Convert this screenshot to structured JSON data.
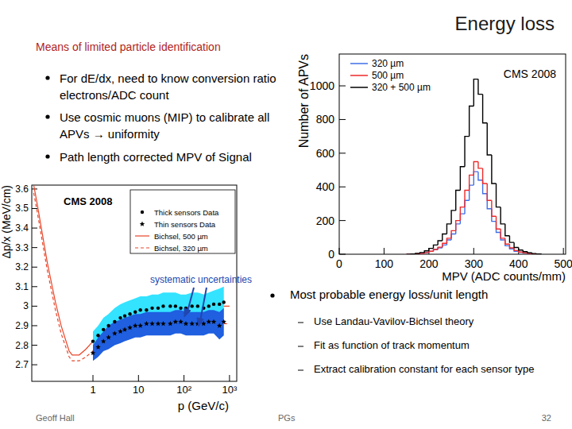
{
  "slide": {
    "title": "Energy loss",
    "heading": "Means of limited particle identification",
    "bullets": [
      "For dE/dx, need to know conversion ratio electrons/ADC count",
      "Use cosmic muons (MIP) to calibrate all APVs → uniformity",
      "Path length corrected MPV of Signal"
    ],
    "right_bullet": "Most probable energy loss/unit length",
    "sub_bullets": [
      "Use Landau-Vavilov-Bichsel theory",
      "Fit as function of track momentum",
      "Extract calibration constant for each sensor type"
    ],
    "footer": {
      "author": "Geoff Hall",
      "center": "PGs",
      "page": 32
    }
  },
  "chart_data": [
    {
      "type": "histogram",
      "x_label": "MPV (ADC counts/mm)",
      "y_label": "Number of APVs",
      "annotations": [
        "CMS 2008"
      ],
      "bins": [
        150,
        160,
        170,
        180,
        190,
        200,
        210,
        220,
        230,
        240,
        250,
        260,
        270,
        280,
        290,
        300,
        310,
        320,
        330,
        340,
        350,
        360,
        370,
        380,
        390,
        400,
        410,
        420,
        430,
        440,
        450
      ],
      "series": [
        {
          "name": "320 µm",
          "color": "#3f6fe8",
          "values": [
            0,
            1,
            2,
            5,
            10,
            17,
            27,
            38,
            55,
            85,
            120,
            180,
            240,
            320,
            410,
            490,
            440,
            360,
            270,
            195,
            130,
            85,
            50,
            32,
            18,
            12,
            7,
            4,
            2,
            1
          ]
        },
        {
          "name": "500 µm",
          "color": "#ee2a2a",
          "values": [
            0,
            1,
            3,
            5,
            10,
            18,
            28,
            42,
            65,
            95,
            140,
            200,
            280,
            380,
            470,
            550,
            510,
            420,
            320,
            225,
            150,
            95,
            60,
            38,
            22,
            13,
            8,
            4,
            2,
            1
          ]
        },
        {
          "name": "320 + 500 µm",
          "color": "#000000",
          "values": [
            0,
            2,
            5,
            10,
            20,
            35,
            55,
            80,
            120,
            180,
            260,
            380,
            520,
            700,
            880,
            1040,
            950,
            780,
            590,
            420,
            280,
            180,
            110,
            70,
            40,
            25,
            15,
            8,
            4,
            2
          ]
        }
      ],
      "xlim": [
        0,
        505
      ],
      "xticks": [
        0,
        100,
        200,
        300,
        400,
        500
      ],
      "ylim": [
        0,
        1189
      ],
      "yticks": [
        0,
        200,
        400,
        600,
        800,
        1000
      ],
      "grid": false,
      "legend": "top-left"
    },
    {
      "type": "scatter",
      "x_label": "p (GeV/c)",
      "y_label": "Δp/x (MeV/cm)",
      "annotations": [
        "CMS 2008",
        "systematic uncertainties"
      ],
      "log": "x",
      "series": [
        {
          "name": "Thick sensors Data",
          "type": "scatter",
          "marker": "circle",
          "color": "#000000",
          "x": [
            1,
            1.3,
            1.7,
            2.2,
            3,
            4,
            5,
            6.5,
            8.5,
            11,
            15,
            20,
            27,
            35,
            50,
            65,
            85,
            110,
            150,
            200,
            270,
            350,
            450,
            600,
            750
          ],
          "values": [
            2.82,
            2.85,
            2.88,
            2.9,
            2.92,
            2.94,
            2.95,
            2.96,
            2.97,
            2.98,
            2.98,
            2.99,
            2.99,
            3.0,
            3.0,
            3.0,
            2.99,
            2.99,
            3.0,
            3.0,
            2.99,
            3.0,
            3.01,
            3.01,
            3.02
          ],
          "error": [
            0.05,
            0.05,
            0.06,
            0.06,
            0.07,
            0.07,
            0.07,
            0.07,
            0.07,
            0.07,
            0.07,
            0.07,
            0.07,
            0.07,
            0.07,
            0.07,
            0.07,
            0.07,
            0.07,
            0.07,
            0.07,
            0.07,
            0.07,
            0.08,
            0.08
          ]
        },
        {
          "name": "Thin sensors Data",
          "type": "scatter",
          "marker": "star",
          "color": "#000000",
          "x": [
            1,
            1.3,
            1.7,
            2.2,
            3,
            4,
            5,
            6.5,
            8.5,
            11,
            15,
            20,
            27,
            35,
            50,
            65,
            85,
            110,
            150,
            200,
            270,
            350,
            450,
            600,
            750
          ],
          "values": [
            2.76,
            2.79,
            2.82,
            2.84,
            2.86,
            2.87,
            2.88,
            2.89,
            2.9,
            2.9,
            2.91,
            2.91,
            2.91,
            2.91,
            2.91,
            2.92,
            2.92,
            2.91,
            2.91,
            2.91,
            2.91,
            2.92,
            2.92,
            2.9,
            2.92
          ],
          "error": [
            0.04,
            0.05,
            0.05,
            0.06,
            0.06,
            0.06,
            0.06,
            0.06,
            0.06,
            0.06,
            0.06,
            0.06,
            0.06,
            0.06,
            0.06,
            0.06,
            0.06,
            0.06,
            0.06,
            0.06,
            0.06,
            0.06,
            0.06,
            0.07,
            0.07
          ]
        },
        {
          "name": "Bichsel, 500 µm",
          "type": "line",
          "line_style": "solid",
          "color": "#e8472a",
          "x": [
            0.05,
            0.06,
            0.08,
            0.1,
            0.15,
            0.2,
            0.3,
            0.35,
            0.5,
            0.7,
            1,
            2,
            5,
            10,
            30,
            100,
            300,
            1000
          ],
          "values": [
            3.62,
            3.52,
            3.35,
            3.22,
            3.02,
            2.9,
            2.77,
            2.75,
            2.75,
            2.78,
            2.82,
            2.88,
            2.94,
            2.97,
            2.99,
            3.0,
            3.0,
            3.0
          ]
        },
        {
          "name": "Bichsel, 320 µm",
          "type": "line",
          "line_style": "dashed",
          "color": "#e8472a",
          "x": [
            0.05,
            0.06,
            0.08,
            0.1,
            0.15,
            0.2,
            0.3,
            0.35,
            0.5,
            0.7,
            1,
            2,
            5,
            10,
            30,
            100,
            300,
            1000
          ],
          "values": [
            3.58,
            3.48,
            3.31,
            3.18,
            2.98,
            2.86,
            2.74,
            2.72,
            2.72,
            2.74,
            2.77,
            2.82,
            2.86,
            2.88,
            2.9,
            2.91,
            2.91,
            2.91
          ]
        }
      ],
      "xlim": [
        0.0453,
        1442
      ],
      "xticks": [
        1,
        10,
        {
          "value": 100,
          "label": "10²"
        },
        {
          "value": 1000,
          "label": "10³"
        }
      ],
      "ylim": [
        2.615,
        3.62
      ],
      "yticks": [
        2.7,
        2.8,
        2.9,
        3,
        3.1,
        3.2,
        3.3,
        3.4,
        3.5,
        3.6
      ],
      "grid": false,
      "legend": "top-right"
    }
  ]
}
